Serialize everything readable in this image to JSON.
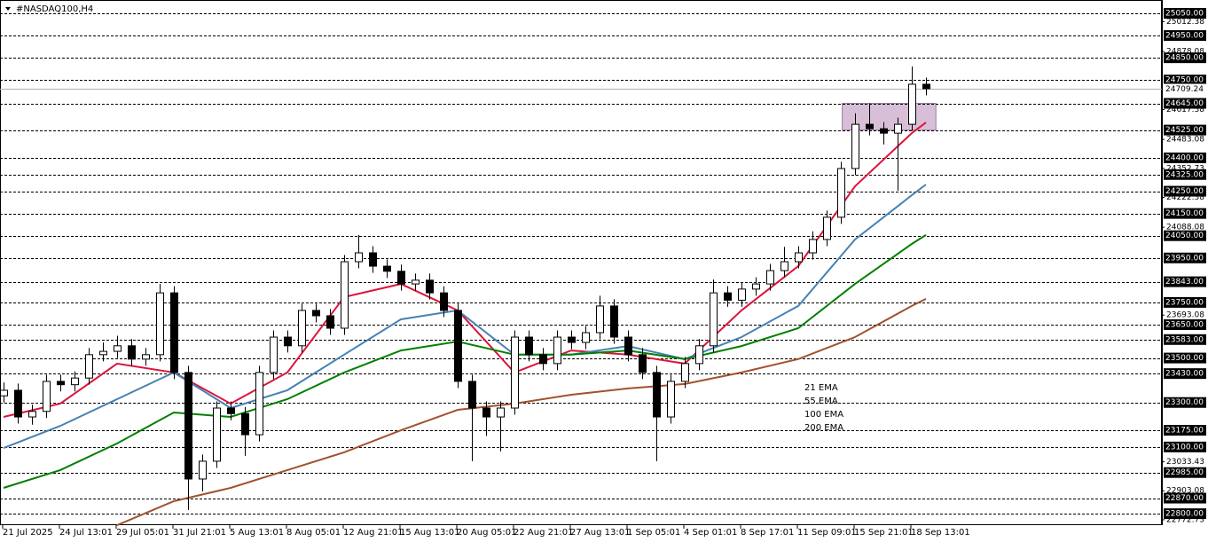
{
  "chart_data": {
    "type": "candlestick",
    "title": "#NASDAQ100,H4",
    "categories": [
      "21 Jul 2025",
      null,
      null,
      null,
      "24 Jul 13:01",
      null,
      null,
      null,
      "29 Jul 05:01",
      null,
      null,
      null,
      "31 Jul 21:01",
      null,
      null,
      null,
      "5 Aug 13:01",
      null,
      null,
      null,
      "8 Aug 05:01",
      null,
      null,
      null,
      "12 Aug 21:01",
      null,
      null,
      null,
      "15 Aug 13:01",
      null,
      null,
      null,
      "20 Aug 05:01",
      null,
      null,
      null,
      "22 Aug 21:01",
      null,
      null,
      null,
      "27 Aug 13:01",
      null,
      null,
      null,
      "1 Sep 05:01",
      null,
      null,
      null,
      "4 Sep 01:01",
      null,
      null,
      null,
      "8 Sep 17:01",
      null,
      null,
      null,
      "11 Sep 09:01",
      null,
      null,
      null,
      "15 Sep 21:01",
      null,
      null,
      null,
      "18 Sep 13:01",
      null
    ],
    "open": [
      23330,
      23355,
      23235,
      23260,
      23395,
      23380,
      23410,
      23515,
      23530,
      23555,
      23495,
      23515,
      23793,
      23435,
      22956,
      23036,
      23275,
      23250,
      23155,
      23435,
      23594,
      23555,
      23714,
      23690,
      23634,
      23933,
      23973,
      23913,
      23890,
      23833,
      23850,
      23793,
      23714,
      23395,
      23275,
      23235,
      23275,
      23594,
      23515,
      23475,
      23594,
      23570,
      23614,
      23734,
      23594,
      23515,
      23435,
      23235,
      23395,
      23475,
      23555,
      23793,
      23760,
      23810,
      23833,
      23893,
      23933,
      23973,
      24033,
      24133,
      24352,
      24551,
      24531,
      24511,
      24551,
      24731
    ],
    "high": [
      23390,
      23385,
      23290,
      23425,
      23425,
      23440,
      23545,
      23570,
      23600,
      23585,
      23545,
      23833,
      23823,
      23465,
      23066,
      23305,
      23305,
      23280,
      23465,
      23624,
      23624,
      23744,
      23744,
      23720,
      23963,
      24053,
      24003,
      23943,
      23920,
      23880,
      23880,
      23823,
      23744,
      23425,
      23305,
      23305,
      23624,
      23624,
      23545,
      23624,
      23624,
      23644,
      23780,
      23764,
      23624,
      23545,
      23465,
      23425,
      23505,
      23585,
      23853,
      23823,
      23840,
      23863,
      23923,
      24000,
      24003,
      24070,
      24163,
      24382,
      24600,
      24645,
      24561,
      24581,
      24811,
      24761
    ],
    "low": [
      23300,
      23205,
      23200,
      23230,
      23350,
      23350,
      23380,
      23485,
      23500,
      23465,
      23465,
      23485,
      23405,
      22817,
      22900,
      23006,
      23220,
      23060,
      23125,
      23405,
      23525,
      23525,
      23660,
      23604,
      23604,
      23903,
      23883,
      23860,
      23803,
      23803,
      23763,
      23684,
      23365,
      23036,
      23150,
      23080,
      23245,
      23485,
      23445,
      23445,
      23540,
      23540,
      23584,
      23564,
      23485,
      23405,
      23036,
      23205,
      23365,
      23445,
      23525,
      23730,
      23730,
      23780,
      23803,
      23863,
      23903,
      23943,
      24003,
      24103,
      24322,
      24501,
      24460,
      24252,
      24521,
      24681
    ],
    "close": [
      23355,
      23235,
      23260,
      23395,
      23380,
      23410,
      23515,
      23530,
      23555,
      23495,
      23515,
      23793,
      23435,
      22956,
      23036,
      23275,
      23250,
      23155,
      23435,
      23594,
      23555,
      23714,
      23690,
      23634,
      23933,
      23973,
      23913,
      23890,
      23833,
      23850,
      23793,
      23714,
      23395,
      23275,
      23235,
      23275,
      23594,
      23515,
      23475,
      23594,
      23570,
      23614,
      23734,
      23594,
      23515,
      23435,
      23235,
      23395,
      23475,
      23555,
      23793,
      23760,
      23810,
      23833,
      23893,
      23933,
      23973,
      24033,
      24133,
      24352,
      24551,
      24531,
      24511,
      24551,
      24731,
      24711
    ],
    "up_color": "#ffffff",
    "down_color": "#000000",
    "series": [
      {
        "name": "21 EMA",
        "color": "#dc143c",
        "x": [
          0,
          4,
          8,
          12,
          16,
          20,
          24,
          28,
          32,
          36,
          40,
          44,
          48,
          52,
          56,
          60,
          64,
          65
        ],
        "values": [
          23235,
          23295,
          23475,
          23435,
          23295,
          23435,
          23774,
          23833,
          23714,
          23435,
          23534,
          23515,
          23475,
          23714,
          23913,
          24272,
          24511,
          24559
        ]
      },
      {
        "name": "55 EMA",
        "color": "#4682b4",
        "x": [
          0,
          4,
          8,
          12,
          16,
          20,
          24,
          28,
          32,
          36,
          40,
          44,
          48,
          52,
          56,
          60,
          64,
          65
        ],
        "values": [
          23095,
          23195,
          23315,
          23435,
          23275,
          23355,
          23515,
          23674,
          23714,
          23515,
          23515,
          23554,
          23495,
          23594,
          23734,
          24033,
          24232,
          24280
        ]
      },
      {
        "name": "100 EMA",
        "color": "#008000",
        "x": [
          0,
          4,
          8,
          12,
          16,
          20,
          24,
          28,
          32,
          36,
          40,
          44,
          48,
          52,
          56,
          60,
          64,
          65
        ],
        "values": [
          22916,
          22996,
          23116,
          23255,
          23235,
          23315,
          23435,
          23534,
          23574,
          23515,
          23515,
          23534,
          23495,
          23554,
          23634,
          23833,
          24013,
          24053
        ]
      },
      {
        "name": "200 EMA",
        "color": "#a0522d",
        "x": [
          8,
          12,
          16,
          20,
          24,
          28,
          32,
          36,
          40,
          44,
          48,
          52,
          56,
          60,
          64,
          65
        ],
        "values": [
          22748,
          22856,
          22916,
          22996,
          23076,
          23175,
          23267,
          23295,
          23335,
          23363,
          23383,
          23435,
          23495,
          23594,
          23734,
          23766
        ]
      }
    ],
    "zone": {
      "x0": 59.1,
      "x1": 65.7,
      "y0": 24525,
      "y1": 24645,
      "color": "#d8bfd8"
    },
    "ylim": [
      22748.5,
      25109.8
    ],
    "levels": [
      {
        "value": 25050,
        "label": "25050.00"
      },
      {
        "value": 24950,
        "label": "24950.00"
      },
      {
        "value": 24850,
        "label": "24850.00"
      },
      {
        "value": 24750,
        "label": "24750.00"
      },
      {
        "value": 24645,
        "label": "24645.00"
      },
      {
        "value": 24525,
        "label": "24525.00"
      },
      {
        "value": 24400,
        "label": "24400.00"
      },
      {
        "value": 24325,
        "label": "24325.00"
      },
      {
        "value": 24250,
        "label": "24250.00"
      },
      {
        "value": 24150,
        "label": "24150.00"
      },
      {
        "value": 24050,
        "label": "24050.00"
      },
      {
        "value": 23950,
        "label": "23950.00"
      },
      {
        "value": 23843,
        "label": "23843.00"
      },
      {
        "value": 23750,
        "label": "23750.00"
      },
      {
        "value": 23650,
        "label": "23650.00"
      },
      {
        "value": 23583,
        "label": "23583.00"
      },
      {
        "value": 23500,
        "label": "23500.00"
      },
      {
        "value": 23430,
        "label": "23430.00"
      },
      {
        "value": 23300,
        "label": "23300.00"
      },
      {
        "value": 23175,
        "label": "23175.00"
      },
      {
        "value": 23100,
        "label": "23100.00"
      },
      {
        "value": 22985,
        "label": "22985.00"
      },
      {
        "value": 22870,
        "label": "22870.00"
      },
      {
        "value": 22800,
        "label": "22800.00"
      }
    ],
    "yticks": [
      25012.38,
      24878.08,
      24617.38,
      24483.08,
      24352.73,
      24222.38,
      24088.08,
      23693.08,
      23033.43,
      22903.08,
      22772.73
    ],
    "last_price": 24709.24
  }
}
